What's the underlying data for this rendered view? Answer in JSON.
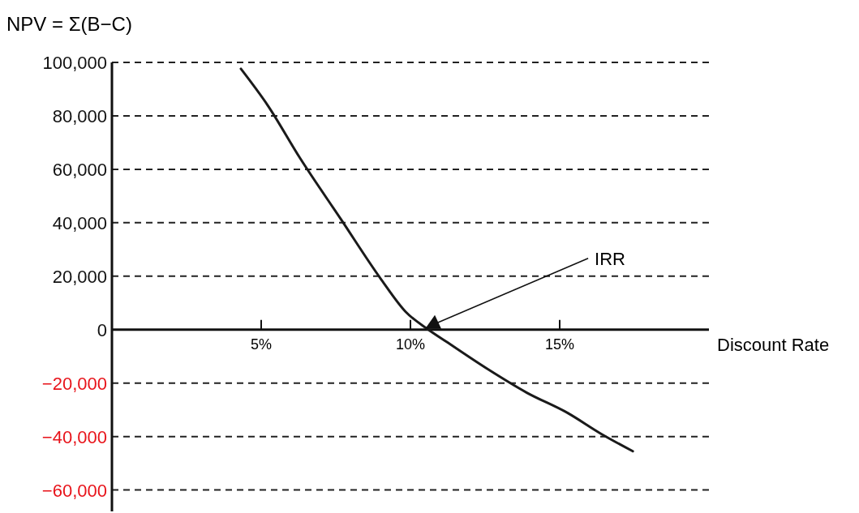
{
  "chart_data": {
    "type": "line",
    "title": "NPV = Σ(B−C)",
    "xlabel": "Discount Rate",
    "x": [
      4.32,
      5.22,
      6.3,
      7.66,
      9.02,
      9.84,
      10.6,
      11.2,
      12.55,
      13.9,
      15.27,
      16.36,
      17.45
    ],
    "series": [
      {
        "color": "#1a1a1a",
        "values": [
          97600,
          83900,
          64200,
          41500,
          18800,
          6700,
          0,
          -4500,
          -14500,
          -23600,
          -31200,
          -38800,
          -45500
        ]
      }
    ],
    "xlim": [
      0,
      20
    ],
    "xticks": [
      {
        "value": 5,
        "label": "5%"
      },
      {
        "value": 10,
        "label": "10%"
      },
      {
        "value": 15,
        "label": "15%"
      }
    ],
    "ylim": [
      -68000,
      100000
    ],
    "yticks": [
      {
        "value": -60000,
        "label": "−60,000"
      },
      {
        "value": -40000,
        "label": "−40,000"
      },
      {
        "value": -20000,
        "label": "−20,000"
      },
      0,
      {
        "value": 20000,
        "label": "20,000"
      },
      {
        "value": 40000,
        "label": "40,000"
      },
      {
        "value": 60000,
        "label": "60,000"
      },
      {
        "value": 80000,
        "label": "80,000"
      },
      {
        "value": 100000,
        "label": "100,000"
      }
    ],
    "grid": "y",
    "line_style": "solid",
    "marker": "none",
    "annotations": [
      "IRR"
    ]
  }
}
